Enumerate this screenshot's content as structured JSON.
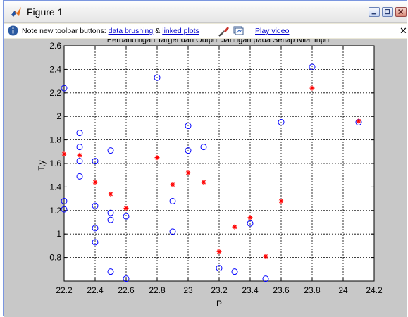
{
  "window": {
    "title": "Figure 1",
    "minimize_label": "",
    "maximize_label": "",
    "close_label": ""
  },
  "notebar": {
    "prefix": "Note new toolbar buttons:",
    "link_brushing": "data brushing",
    "amp": "&",
    "link_linked": "linked plots",
    "link_play": "Play video"
  },
  "chart_data": {
    "type": "scatter",
    "title": "Perbandingan Target dan Output Jaringan pada Setiap Nilai Input",
    "xlabel": "P",
    "ylabel": "T,y",
    "xlim": [
      22.2,
      24.2
    ],
    "ylim": [
      0.6,
      2.6
    ],
    "grid": true,
    "xticks": [
      "22.2",
      "22.4",
      "22.6",
      "22.8",
      "23",
      "23.2",
      "23.4",
      "23.6",
      "23.8",
      "24",
      "24.2"
    ],
    "yticks": [
      "0.8",
      "1",
      "1.2",
      "1.4",
      "1.6",
      "1.8",
      "2",
      "2.2",
      "2.4",
      "2.6"
    ],
    "series": [
      {
        "marker": "circle",
        "color": "#0000ff",
        "x": [
          22.2,
          22.2,
          22.2,
          22.3,
          22.3,
          22.3,
          22.3,
          22.4,
          22.4,
          22.4,
          22.4,
          22.5,
          22.5,
          22.5,
          22.5,
          22.6,
          22.6,
          22.8,
          22.9,
          22.9,
          23.0,
          23.0,
          23.1,
          23.2,
          23.3,
          23.4,
          23.5,
          23.6,
          23.8,
          24.1
        ],
        "y": [
          2.24,
          1.28,
          1.21,
          1.86,
          1.74,
          1.62,
          1.49,
          1.62,
          1.24,
          1.05,
          0.93,
          1.71,
          1.18,
          1.12,
          0.68,
          1.15,
          0.62,
          2.33,
          1.28,
          1.02,
          1.92,
          1.71,
          1.74,
          0.71,
          0.68,
          1.09,
          0.62,
          1.95,
          2.42,
          1.95
        ]
      },
      {
        "marker": "asterisk",
        "color": "#ff0000",
        "x": [
          22.2,
          22.3,
          22.4,
          22.5,
          22.6,
          22.8,
          22.9,
          23.0,
          23.1,
          23.2,
          23.3,
          23.4,
          23.5,
          23.6,
          23.8,
          24.1
        ],
        "y": [
          1.68,
          1.67,
          1.44,
          1.34,
          1.22,
          1.65,
          1.42,
          1.52,
          1.44,
          0.85,
          1.06,
          1.14,
          0.81,
          1.28,
          2.24,
          1.96
        ]
      }
    ]
  }
}
